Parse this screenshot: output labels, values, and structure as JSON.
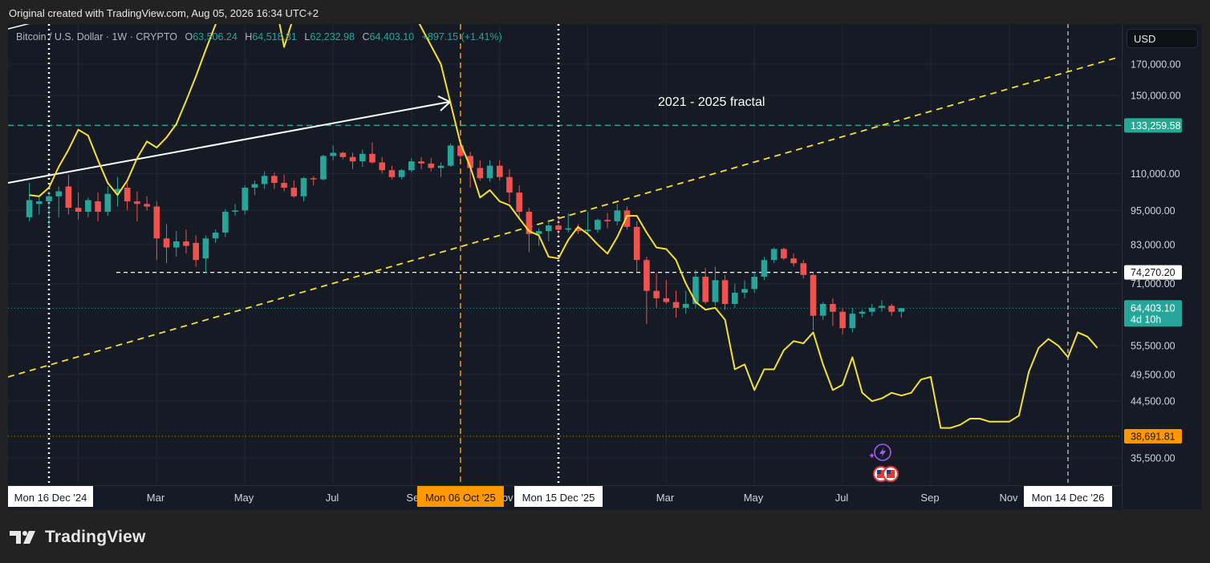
{
  "caption": "Original created with TradingView.com, Aug 05, 2026 16:34 UTC+2",
  "brand": "TradingView",
  "currency": "USD",
  "legend": {
    "symbol": "Bitcoin / U.S. Dollar · 1W · CRYPTO",
    "o_label": "O",
    "o": "63,506.24",
    "h_label": "H",
    "h": "64,518.81",
    "l_label": "L",
    "l": "62,232.98",
    "c_label": "C",
    "c": "64,403.10",
    "change": "+897.15 (+1.41%)"
  },
  "colors": {
    "up": "#26a69a",
    "down": "#ef5350",
    "fractal": "#f5e134",
    "orange": "#ff9800",
    "teal_line": "#22ab94",
    "background": "#161a25"
  },
  "chart_data": {
    "type": "candlestick",
    "title": "",
    "annotation": "2021 - 2025 fractal",
    "price_scale": "log",
    "yticks": [
      "170,000.00",
      "150,000.00",
      "110,000.00",
      "95,000.00",
      "83,000.00",
      "71,000.00",
      "55,500.00",
      "49,500.00",
      "44,500.00",
      "35,500.00"
    ],
    "xticks": [
      "Mar",
      "May",
      "Jul",
      "Sep",
      "Nov",
      "Mar",
      "May",
      "Jul",
      "Sep",
      "Nov"
    ],
    "x_markers": [
      {
        "label": "Mon 16 Dec '24",
        "style": "white-dotted"
      },
      {
        "label": "Mon 06 Oct '25",
        "style": "orange-dashed"
      },
      {
        "label": "Mon 15 Dec '25",
        "style": "white-dotted"
      },
      {
        "label": "Mon 14 Dec '26",
        "style": "white-dashed"
      }
    ],
    "price_labels": [
      {
        "value": "133,259.58",
        "kind": "teal-line"
      },
      {
        "value": "74,270.20",
        "kind": "white-dashed"
      },
      {
        "value": "64,403.10",
        "countdown": "4d 10h",
        "kind": "last-price"
      },
      {
        "value": "38,691.81",
        "kind": "orange-dotted"
      }
    ],
    "candles": [
      {
        "o": 92500,
        "h": 106000,
        "l": 91000,
        "c": 99000
      },
      {
        "o": 97500,
        "h": 100500,
        "l": 93500,
        "c": 98500
      },
      {
        "o": 98500,
        "h": 102500,
        "l": 89000,
        "c": 100500
      },
      {
        "o": 100500,
        "h": 104500,
        "l": 92500,
        "c": 102500
      },
      {
        "o": 104500,
        "h": 109500,
        "l": 93500,
        "c": 96000
      },
      {
        "o": 96000,
        "h": 102000,
        "l": 91500,
        "c": 94500
      },
      {
        "o": 94500,
        "h": 100000,
        "l": 92500,
        "c": 99000
      },
      {
        "o": 98500,
        "h": 102000,
        "l": 91000,
        "c": 94500
      },
      {
        "o": 94500,
        "h": 104500,
        "l": 93000,
        "c": 101500
      },
      {
        "o": 102000,
        "h": 108500,
        "l": 96500,
        "c": 103500
      },
      {
        "o": 104000,
        "h": 106000,
        "l": 95000,
        "c": 98500
      },
      {
        "o": 98500,
        "h": 102500,
        "l": 91000,
        "c": 97500
      },
      {
        "o": 97500,
        "h": 100500,
        "l": 95000,
        "c": 96500
      },
      {
        "o": 96500,
        "h": 98500,
        "l": 78000,
        "c": 85000
      },
      {
        "o": 85000,
        "h": 90000,
        "l": 77000,
        "c": 82000
      },
      {
        "o": 82000,
        "h": 87500,
        "l": 79000,
        "c": 84000
      },
      {
        "o": 84000,
        "h": 88000,
        "l": 80000,
        "c": 82500
      },
      {
        "o": 83500,
        "h": 86000,
        "l": 76000,
        "c": 78000
      },
      {
        "o": 78500,
        "h": 86000,
        "l": 74000,
        "c": 85000
      },
      {
        "o": 85000,
        "h": 88000,
        "l": 83500,
        "c": 87000
      },
      {
        "o": 87000,
        "h": 95500,
        "l": 85500,
        "c": 94500
      },
      {
        "o": 94500,
        "h": 97500,
        "l": 93000,
        "c": 95000
      },
      {
        "o": 95000,
        "h": 105000,
        "l": 93500,
        "c": 104000
      },
      {
        "o": 104000,
        "h": 107000,
        "l": 101000,
        "c": 105500
      },
      {
        "o": 105500,
        "h": 111000,
        "l": 103500,
        "c": 109000
      },
      {
        "o": 109000,
        "h": 110500,
        "l": 103500,
        "c": 106000
      },
      {
        "o": 106000,
        "h": 109500,
        "l": 102500,
        "c": 104000
      },
      {
        "o": 104000,
        "h": 107000,
        "l": 100000,
        "c": 100500
      },
      {
        "o": 100500,
        "h": 108500,
        "l": 98500,
        "c": 108000
      },
      {
        "o": 108000,
        "h": 109000,
        "l": 105000,
        "c": 107500
      },
      {
        "o": 107500,
        "h": 118500,
        "l": 107000,
        "c": 118000
      },
      {
        "o": 118000,
        "h": 123000,
        "l": 116000,
        "c": 119500
      },
      {
        "o": 119500,
        "h": 120000,
        "l": 116500,
        "c": 117500
      },
      {
        "o": 117500,
        "h": 119500,
        "l": 112000,
        "c": 115500
      },
      {
        "o": 115500,
        "h": 121000,
        "l": 113000,
        "c": 119000
      },
      {
        "o": 119000,
        "h": 124500,
        "l": 114500,
        "c": 115000
      },
      {
        "o": 115000,
        "h": 117500,
        "l": 110000,
        "c": 111500
      },
      {
        "o": 111500,
        "h": 113500,
        "l": 107500,
        "c": 108500
      },
      {
        "o": 108500,
        "h": 112000,
        "l": 107500,
        "c": 111500
      },
      {
        "o": 111500,
        "h": 117000,
        "l": 110500,
        "c": 115500
      },
      {
        "o": 115500,
        "h": 117500,
        "l": 112000,
        "c": 114500
      },
      {
        "o": 114500,
        "h": 117000,
        "l": 111000,
        "c": 112500
      },
      {
        "o": 112500,
        "h": 115000,
        "l": 108500,
        "c": 113500
      },
      {
        "o": 113500,
        "h": 124000,
        "l": 113000,
        "c": 123000
      },
      {
        "o": 123000,
        "h": 126000,
        "l": 117000,
        "c": 118000
      },
      {
        "o": 118000,
        "h": 120000,
        "l": 104000,
        "c": 112500
      },
      {
        "o": 112500,
        "h": 116000,
        "l": 107000,
        "c": 108000
      },
      {
        "o": 108000,
        "h": 116000,
        "l": 106500,
        "c": 113500
      },
      {
        "o": 113500,
        "h": 116000,
        "l": 107000,
        "c": 108500
      },
      {
        "o": 108500,
        "h": 112000,
        "l": 98000,
        "c": 102000
      },
      {
        "o": 102000,
        "h": 105000,
        "l": 92000,
        "c": 94500
      },
      {
        "o": 94500,
        "h": 96000,
        "l": 80500,
        "c": 86500
      },
      {
        "o": 86500,
        "h": 88500,
        "l": 82500,
        "c": 87500
      },
      {
        "o": 87500,
        "h": 91500,
        "l": 84000,
        "c": 89500
      },
      {
        "o": 89500,
        "h": 92500,
        "l": 86000,
        "c": 88000
      },
      {
        "o": 88000,
        "h": 94000,
        "l": 87000,
        "c": 88500
      },
      {
        "o": 88500,
        "h": 90000,
        "l": 86500,
        "c": 87500
      },
      {
        "o": 87500,
        "h": 94500,
        "l": 86500,
        "c": 88000
      },
      {
        "o": 88000,
        "h": 92000,
        "l": 87000,
        "c": 91500
      },
      {
        "o": 91500,
        "h": 94000,
        "l": 88500,
        "c": 91000
      },
      {
        "o": 91000,
        "h": 97500,
        "l": 89500,
        "c": 95000
      },
      {
        "o": 95000,
        "h": 96500,
        "l": 88000,
        "c": 89000
      },
      {
        "o": 89000,
        "h": 91000,
        "l": 74500,
        "c": 78000
      },
      {
        "o": 78000,
        "h": 79000,
        "l": 60500,
        "c": 69000
      },
      {
        "o": 69000,
        "h": 74000,
        "l": 64500,
        "c": 67000
      },
      {
        "o": 67000,
        "h": 72000,
        "l": 65500,
        "c": 66000
      },
      {
        "o": 66000,
        "h": 69000,
        "l": 62000,
        "c": 64500
      },
      {
        "o": 64500,
        "h": 69000,
        "l": 63000,
        "c": 65500
      },
      {
        "o": 65500,
        "h": 75000,
        "l": 64500,
        "c": 73000
      },
      {
        "o": 73000,
        "h": 75500,
        "l": 65500,
        "c": 66000
      },
      {
        "o": 66000,
        "h": 76000,
        "l": 65000,
        "c": 72000
      },
      {
        "o": 72000,
        "h": 73500,
        "l": 64000,
        "c": 65500
      },
      {
        "o": 65500,
        "h": 71000,
        "l": 64500,
        "c": 68500
      },
      {
        "o": 68500,
        "h": 72000,
        "l": 67000,
        "c": 69500
      },
      {
        "o": 69500,
        "h": 74500,
        "l": 68500,
        "c": 73000
      },
      {
        "o": 73000,
        "h": 79000,
        "l": 72000,
        "c": 78000
      },
      {
        "o": 78000,
        "h": 82000,
        "l": 77000,
        "c": 81500
      },
      {
        "o": 81500,
        "h": 82000,
        "l": 78000,
        "c": 78500
      },
      {
        "o": 78500,
        "h": 80000,
        "l": 76000,
        "c": 77000
      },
      {
        "o": 77000,
        "h": 78000,
        "l": 72500,
        "c": 73500
      },
      {
        "o": 73500,
        "h": 74000,
        "l": 59000,
        "c": 62500
      },
      {
        "o": 62500,
        "h": 66000,
        "l": 61500,
        "c": 65500
      },
      {
        "o": 65500,
        "h": 67000,
        "l": 60000,
        "c": 63500
      },
      {
        "o": 63500,
        "h": 64500,
        "l": 58000,
        "c": 59500
      },
      {
        "o": 59500,
        "h": 64500,
        "l": 58500,
        "c": 63000
      },
      {
        "o": 63000,
        "h": 64000,
        "l": 62000,
        "c": 63500
      },
      {
        "o": 63500,
        "h": 65500,
        "l": 62500,
        "c": 64500
      },
      {
        "o": 64500,
        "h": 66500,
        "l": 63500,
        "c": 65000
      },
      {
        "o": 65000,
        "h": 65500,
        "l": 62500,
        "c": 63500
      },
      {
        "o": 63500,
        "h": 64500,
        "l": 62000,
        "c": 64403
      }
    ],
    "fractal_line": [
      [
        "2024-12-02",
        101000
      ],
      [
        "2024-12-09",
        100500
      ],
      [
        "2024-12-16",
        104000
      ],
      [
        "2024-12-23",
        113000
      ],
      [
        "2024-12-30",
        121000
      ],
      [
        "2025-01-06",
        131000
      ],
      [
        "2025-01-13",
        128000
      ],
      [
        "2025-01-20",
        116000
      ],
      [
        "2025-01-27",
        106000
      ],
      [
        "2025-02-03",
        101000
      ],
      [
        "2025-02-10",
        107000
      ],
      [
        "2025-02-17",
        117000
      ],
      [
        "2025-02-24",
        125000
      ],
      [
        "2025-03-03",
        122000
      ],
      [
        "2025-03-10",
        127000
      ],
      [
        "2025-03-17",
        134000
      ],
      [
        "2025-03-24",
        147000
      ],
      [
        "2025-03-31",
        162000
      ],
      [
        "2025-04-07",
        180000
      ],
      [
        "2025-04-14",
        199000
      ],
      [
        "2025-04-21",
        220000
      ],
      [
        "2025-04-28",
        225000
      ],
      [
        "2025-05-05",
        218000
      ],
      [
        "2025-05-12",
        212000
      ],
      [
        "2025-05-19",
        208000
      ],
      [
        "2025-05-26",
        222000
      ],
      [
        "2025-06-02",
        182000
      ],
      [
        "2025-06-09",
        206000
      ],
      [
        "2025-06-16",
        208000
      ],
      [
        "2025-08-18",
        245000
      ],
      [
        "2025-09-22",
        170000
      ],
      [
        "2025-10-06",
        124000
      ],
      [
        "2025-10-13",
        113000
      ],
      [
        "2025-10-20",
        100000
      ],
      [
        "2025-10-27",
        103000
      ],
      [
        "2025-11-03",
        98500
      ],
      [
        "2025-11-10",
        97000
      ],
      [
        "2025-11-17",
        92000
      ],
      [
        "2025-11-24",
        87500
      ],
      [
        "2025-12-01",
        86000
      ],
      [
        "2025-12-08",
        79000
      ],
      [
        "2025-12-15",
        78500
      ],
      [
        "2025-12-22",
        84500
      ],
      [
        "2025-12-29",
        89000
      ],
      [
        "2026-01-05",
        86500
      ],
      [
        "2026-01-12",
        83000
      ],
      [
        "2026-01-19",
        80000
      ],
      [
        "2026-01-26",
        85500
      ],
      [
        "2026-02-02",
        93000
      ],
      [
        "2026-02-09",
        93000
      ],
      [
        "2026-02-16",
        87000
      ],
      [
        "2026-02-23",
        82000
      ],
      [
        "2026-03-02",
        81500
      ],
      [
        "2026-03-09",
        78000
      ],
      [
        "2026-03-16",
        71000
      ],
      [
        "2026-03-23",
        66000
      ],
      [
        "2026-03-30",
        64000
      ],
      [
        "2026-04-06",
        64500
      ],
      [
        "2026-04-13",
        61500
      ],
      [
        "2026-04-20",
        50500
      ],
      [
        "2026-04-27",
        51500
      ],
      [
        "2026-05-04",
        46500
      ],
      [
        "2026-05-11",
        50500
      ],
      [
        "2026-05-18",
        50500
      ],
      [
        "2026-05-25",
        54500
      ],
      [
        "2026-06-01",
        56500
      ],
      [
        "2026-06-08",
        56000
      ],
      [
        "2026-06-15",
        58500
      ],
      [
        "2026-06-22",
        51500
      ],
      [
        "2026-06-29",
        46500
      ],
      [
        "2026-07-06",
        47500
      ],
      [
        "2026-07-13",
        53000
      ],
      [
        "2026-07-20",
        46000
      ],
      [
        "2026-07-27",
        44500
      ],
      [
        "2026-08-03",
        45000
      ],
      [
        "2026-08-10",
        46000
      ],
      [
        "2026-08-17",
        45500
      ],
      [
        "2026-08-24",
        46000
      ],
      [
        "2026-08-31",
        48500
      ],
      [
        "2026-09-07",
        49000
      ],
      [
        "2026-09-14",
        40000
      ],
      [
        "2026-09-21",
        40000
      ],
      [
        "2026-09-28",
        40500
      ],
      [
        "2026-10-05",
        41500
      ],
      [
        "2026-10-12",
        41500
      ],
      [
        "2026-10-19",
        41000
      ],
      [
        "2026-10-26",
        41000
      ],
      [
        "2026-11-02",
        41000
      ],
      [
        "2026-11-09",
        42000
      ],
      [
        "2026-11-16",
        50000
      ],
      [
        "2026-11-23",
        55000
      ],
      [
        "2026-11-30",
        57000
      ],
      [
        "2026-12-07",
        55500
      ],
      [
        "2026-12-14",
        53000
      ],
      [
        "2026-12-21",
        58500
      ],
      [
        "2026-12-28",
        57500
      ],
      [
        "2027-01-04",
        55000
      ]
    ]
  }
}
